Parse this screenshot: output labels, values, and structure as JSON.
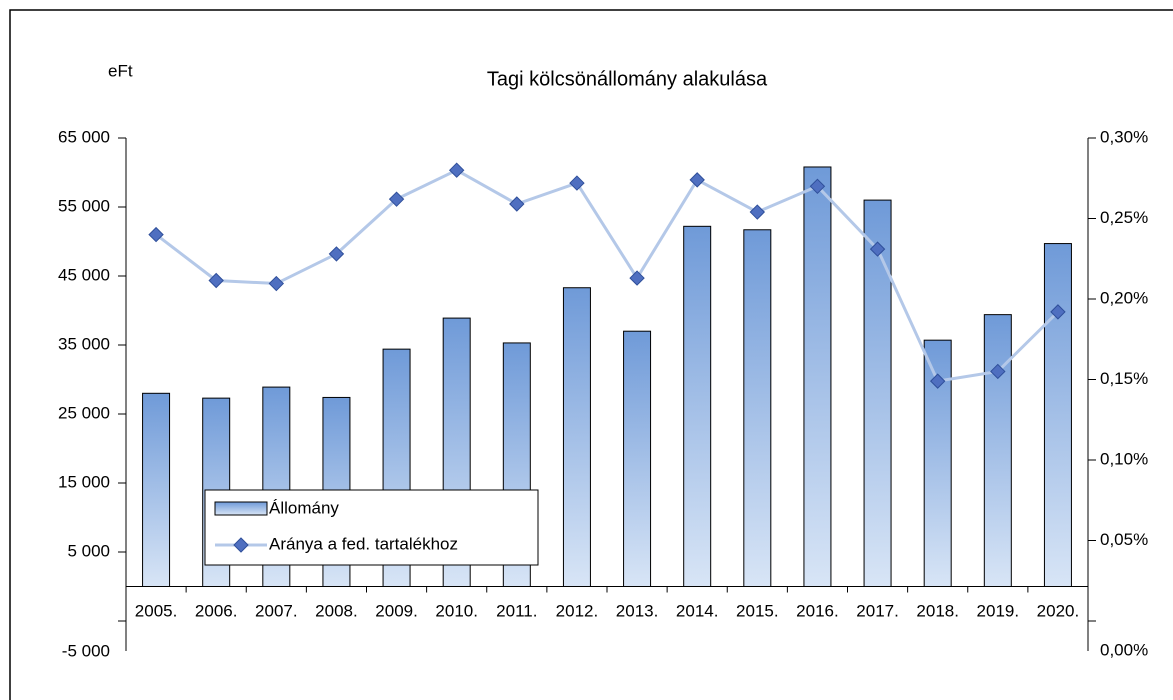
{
  "chart_data": {
    "type": "bar-line",
    "title": "Tagi kölcsönállomány alakulása",
    "y_label": "eFt",
    "categories": [
      "2005.",
      "2006.",
      "2007.",
      "2008.",
      "2009.",
      "2010.",
      "2011.",
      "2012.",
      "2013.",
      "2014.",
      "2015.",
      "2016.",
      "2017.",
      "2018.",
      "2019.",
      "2020."
    ],
    "series": [
      {
        "name": "Állomány",
        "type": "bar",
        "color": "#6f9ad8",
        "values": [
          28000,
          27300,
          28900,
          27400,
          34400,
          38900,
          35300,
          43300,
          37000,
          52200,
          51700,
          60800,
          56000,
          35700,
          39400,
          49700
        ]
      },
      {
        "name": "Aránya a fed. tartalékhoz",
        "type": "line",
        "axis": "y2",
        "color": "#4f6fc0",
        "values": [
          0.24,
          0.2115,
          0.2096,
          0.228,
          0.262,
          0.28,
          0.259,
          0.272,
          0.213,
          0.274,
          0.254,
          0.27,
          0.231,
          0.149,
          0.155,
          0.192
        ]
      }
    ],
    "ylim": [
      -5000,
      65000
    ],
    "yticks": [
      {
        "value": -5000,
        "label": "-5 000"
      },
      {
        "value": 5000,
        "label": "5 000"
      },
      {
        "value": 15000,
        "label": "15 000"
      },
      {
        "value": 25000,
        "label": "25 000"
      },
      {
        "value": 35000,
        "label": "35 000"
      },
      {
        "value": 45000,
        "label": "45 000"
      },
      {
        "value": 55000,
        "label": "55 000"
      },
      {
        "value": 65000,
        "label": "65 000"
      }
    ],
    "y2lim": [
      0,
      0.3
    ],
    "y2ticks": [
      {
        "value": 0,
        "label": "0,00%"
      },
      {
        "value": 0.05,
        "label": "0,05%"
      },
      {
        "value": 0.1,
        "label": "0,10%"
      },
      {
        "value": 0.15,
        "label": "0,15%"
      },
      {
        "value": 0.2,
        "label": "0,20%"
      },
      {
        "value": 0.25,
        "label": "0,25%"
      },
      {
        "value": 0.3,
        "label": "0,30%"
      }
    ],
    "legend": "bottom-left"
  }
}
